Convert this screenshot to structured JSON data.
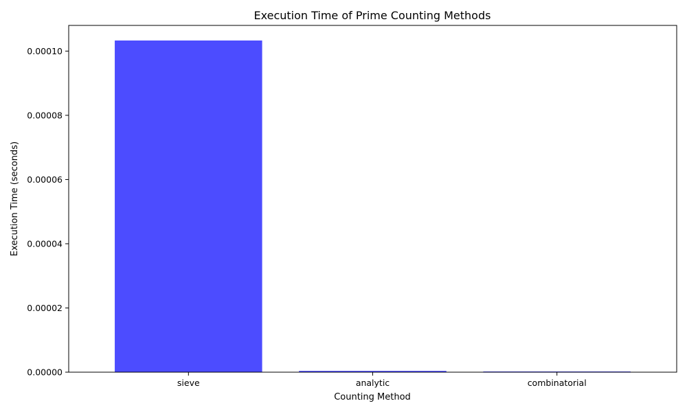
{
  "chart_data": {
    "type": "bar",
    "title": "Execution Time of Prime Counting Methods",
    "xlabel": "Counting Method",
    "ylabel": "Execution Time (seconds)",
    "categories": [
      "sieve",
      "analytic",
      "combinatorial"
    ],
    "values": [
      0.0001033,
      4e-07,
      2e-07
    ],
    "ylim": [
      0,
      0.000108
    ],
    "yticks": [
      0,
      2e-05,
      4e-05,
      6e-05,
      8e-05,
      0.0001
    ],
    "ytick_labels": [
      "0.00000",
      "0.00002",
      "0.00004",
      "0.00006",
      "0.00008",
      "0.00010"
    ],
    "bar_color": "#4c4cff",
    "grid": false,
    "legend": "none"
  }
}
